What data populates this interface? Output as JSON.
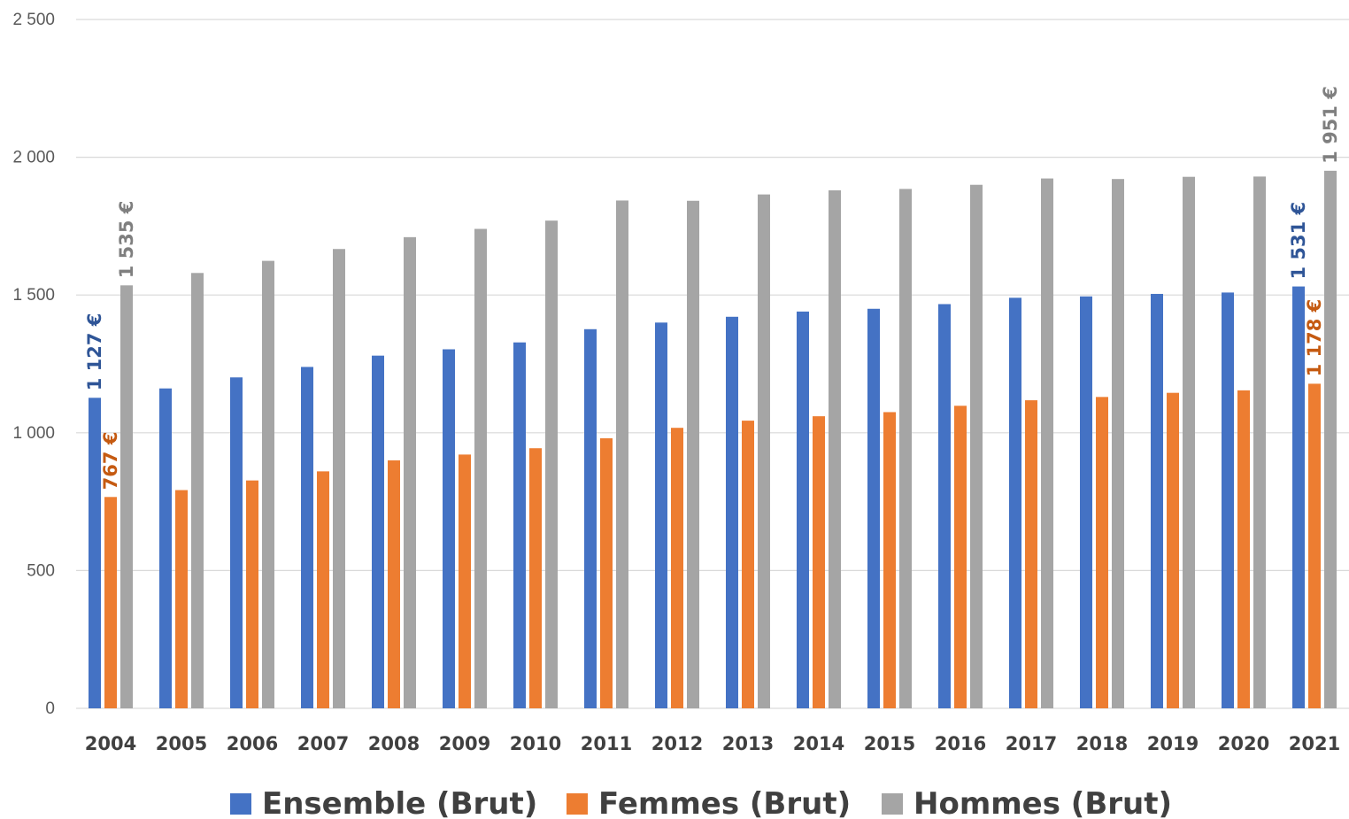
{
  "chart_data": {
    "type": "bar",
    "title": "",
    "xlabel": "",
    "ylabel": "",
    "ylim": [
      0,
      2500
    ],
    "yticks": [
      0,
      500,
      1000,
      1500,
      2000,
      2500
    ],
    "ytick_labels": [
      "0",
      "500",
      "1 000",
      "1 500",
      "2 000",
      "2 500"
    ],
    "grid": true,
    "legend_position": "bottom",
    "categories": [
      "2004",
      "2005",
      "2006",
      "2007",
      "2008",
      "2009",
      "2010",
      "2011",
      "2012",
      "2013",
      "2014",
      "2015",
      "2016",
      "2017",
      "2018",
      "2019",
      "2020",
      "2021"
    ],
    "series": [
      {
        "name": "Ensemble (Brut)",
        "color": "#4472C4",
        "values": [
          1127,
          1161,
          1201,
          1239,
          1280,
          1303,
          1328,
          1376,
          1400,
          1421,
          1440,
          1450,
          1467,
          1490,
          1495,
          1504,
          1509,
          1531
        ]
      },
      {
        "name": "Femmes (Brut)",
        "color": "#ED7D31",
        "values": [
          767,
          792,
          827,
          860,
          900,
          921,
          944,
          980,
          1018,
          1044,
          1060,
          1075,
          1098,
          1118,
          1130,
          1145,
          1154,
          1178
        ]
      },
      {
        "name": "Hommes (Brut)",
        "color": "#A5A5A5",
        "values": [
          1535,
          1580,
          1624,
          1667,
          1710,
          1740,
          1770,
          1843,
          1842,
          1865,
          1880,
          1885,
          1900,
          1923,
          1921,
          1929,
          1930,
          1951
        ]
      }
    ],
    "data_labels": [
      {
        "series": 0,
        "category": "2004",
        "text": "1 127 €"
      },
      {
        "series": 1,
        "category": "2004",
        "text": "767 €"
      },
      {
        "series": 2,
        "category": "2004",
        "text": "1 535 €"
      },
      {
        "series": 0,
        "category": "2021",
        "text": "1 531 €"
      },
      {
        "series": 1,
        "category": "2021",
        "text": "1 178 €"
      },
      {
        "series": 2,
        "category": "2021",
        "text": "1 951 €"
      }
    ],
    "colors": {
      "gridline": "#D9D9D9",
      "ensemble_label": "#2F5597",
      "femmes_label": "#C55A11",
      "hommes_label": "#7F7F7F"
    }
  }
}
